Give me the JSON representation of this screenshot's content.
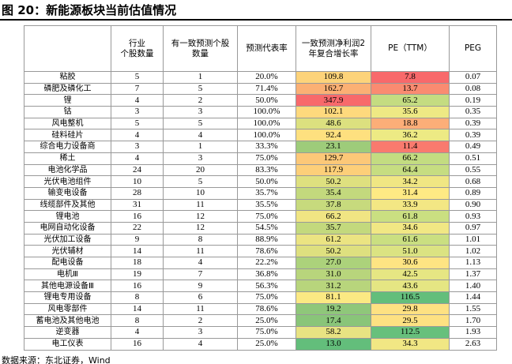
{
  "title": "图 20：新能源板块当前估值情况",
  "table": {
    "header": [
      "行业\n个股数量",
      "有一致预测个股\n数量",
      "预测代表率",
      "一致预测净利润2\n年复合增长率",
      "PE（TTM）",
      "PEG"
    ],
    "rows": [
      [
        "粘胶",
        "5",
        "1",
        "20.0%",
        "109.8",
        "7.8",
        "0.07"
      ],
      [
        "磷肥及磷化工",
        "7",
        "5",
        "71.4%",
        "162.7",
        "13.7",
        "0.08"
      ],
      [
        "锂",
        "4",
        "2",
        "50.0%",
        "347.9",
        "65.2",
        "0.19"
      ],
      [
        "钴",
        "3",
        "3",
        "100.0%",
        "102.1",
        "35.6",
        "0.35"
      ],
      [
        "风电整机",
        "5",
        "5",
        "100.0%",
        "48.6",
        "18.8",
        "0.39"
      ],
      [
        "硅料硅片",
        "4",
        "4",
        "100.0%",
        "92.4",
        "36.2",
        "0.39"
      ],
      [
        "综合电力设备商",
        "3",
        "1",
        "33.3%",
        "23.1",
        "11.4",
        "0.49"
      ],
      [
        "稀土",
        "4",
        "3",
        "75.0%",
        "129.7",
        "66.2",
        "0.51"
      ],
      [
        "电池化学品",
        "24",
        "20",
        "83.3%",
        "117.9",
        "64.4",
        "0.55"
      ],
      [
        "光伏电池组件",
        "10",
        "5",
        "50.0%",
        "50.2",
        "34.2",
        "0.68"
      ],
      [
        "输变电设备",
        "28",
        "10",
        "35.7%",
        "35.4",
        "31.4",
        "0.89"
      ],
      [
        "线缆部件及其他",
        "31",
        "11",
        "35.5%",
        "37.8",
        "33.9",
        "0.90"
      ],
      [
        "锂电池",
        "16",
        "12",
        "75.0%",
        "66.2",
        "61.8",
        "0.93"
      ],
      [
        "电网自动化设备",
        "22",
        "12",
        "54.5%",
        "35.7",
        "34.6",
        "0.97"
      ],
      [
        "光伏加工设备",
        "9",
        "8",
        "88.9%",
        "61.2",
        "61.6",
        "1.01"
      ],
      [
        "光伏辅材",
        "14",
        "11",
        "78.6%",
        "50.2",
        "51.0",
        "1.02"
      ],
      [
        "配电设备",
        "18",
        "4",
        "22.2%",
        "27.0",
        "30.6",
        "1.13"
      ],
      [
        "电机Ⅲ",
        "19",
        "7",
        "36.8%",
        "31.0",
        "42.5",
        "1.37"
      ],
      [
        "其他电源设备Ⅲ",
        "16",
        "9",
        "56.3%",
        "31.2",
        "43.6",
        "1.40"
      ],
      [
        "锂电专用设备",
        "8",
        "6",
        "75.0%",
        "81.1",
        "116.5",
        "1.44"
      ],
      [
        "风电零部件",
        "14",
        "11",
        "78.6%",
        "19.2",
        "29.8",
        "1.55"
      ],
      [
        "蓄电池及其他电池",
        "8",
        "2",
        "25.0%",
        "17.4",
        "29.5",
        "1.70"
      ],
      [
        "逆变器",
        "4",
        "3",
        "75.0%",
        "58.2",
        "112.5",
        "1.93"
      ],
      [
        "电工仪表",
        "16",
        "4",
        "25.0%",
        "13.0",
        "34.3",
        "2.63"
      ]
    ],
    "growth_colors": [
      "#fdd37a",
      "#fbb074",
      "#f8696b",
      "#fed97d",
      "#dce07f",
      "#fee07f",
      "#9ecc7a",
      "#fcc878",
      "#fdcf79",
      "#dee07f",
      "#c3d97d",
      "#c7da7d",
      "#f0e583",
      "#c3d97d",
      "#ebe482",
      "#dee07f",
      "#acd27b",
      "#b8d57c",
      "#b8d57c",
      "#fbe983",
      "#8fc77a",
      "#89c579",
      "#e8e382",
      "#63be7b"
    ],
    "pe_colors": [
      "#f8696b",
      "#fa8b71",
      "#c4dc81",
      "#eee984",
      "#fcae78",
      "#edea84",
      "#f97a6e",
      "#c3dc81",
      "#c6dd81",
      "#f0e683",
      "#feea84",
      "#f3e784",
      "#cadf81",
      "#f1e784",
      "#cadf81",
      "#dbe382",
      "#fee483",
      "#e6e683",
      "#e5e683",
      "#63be7b",
      "#fee182",
      "#fee182",
      "#67c07c",
      "#f1e784"
    ]
  },
  "source": "数据来源：东北证券，Wind"
}
